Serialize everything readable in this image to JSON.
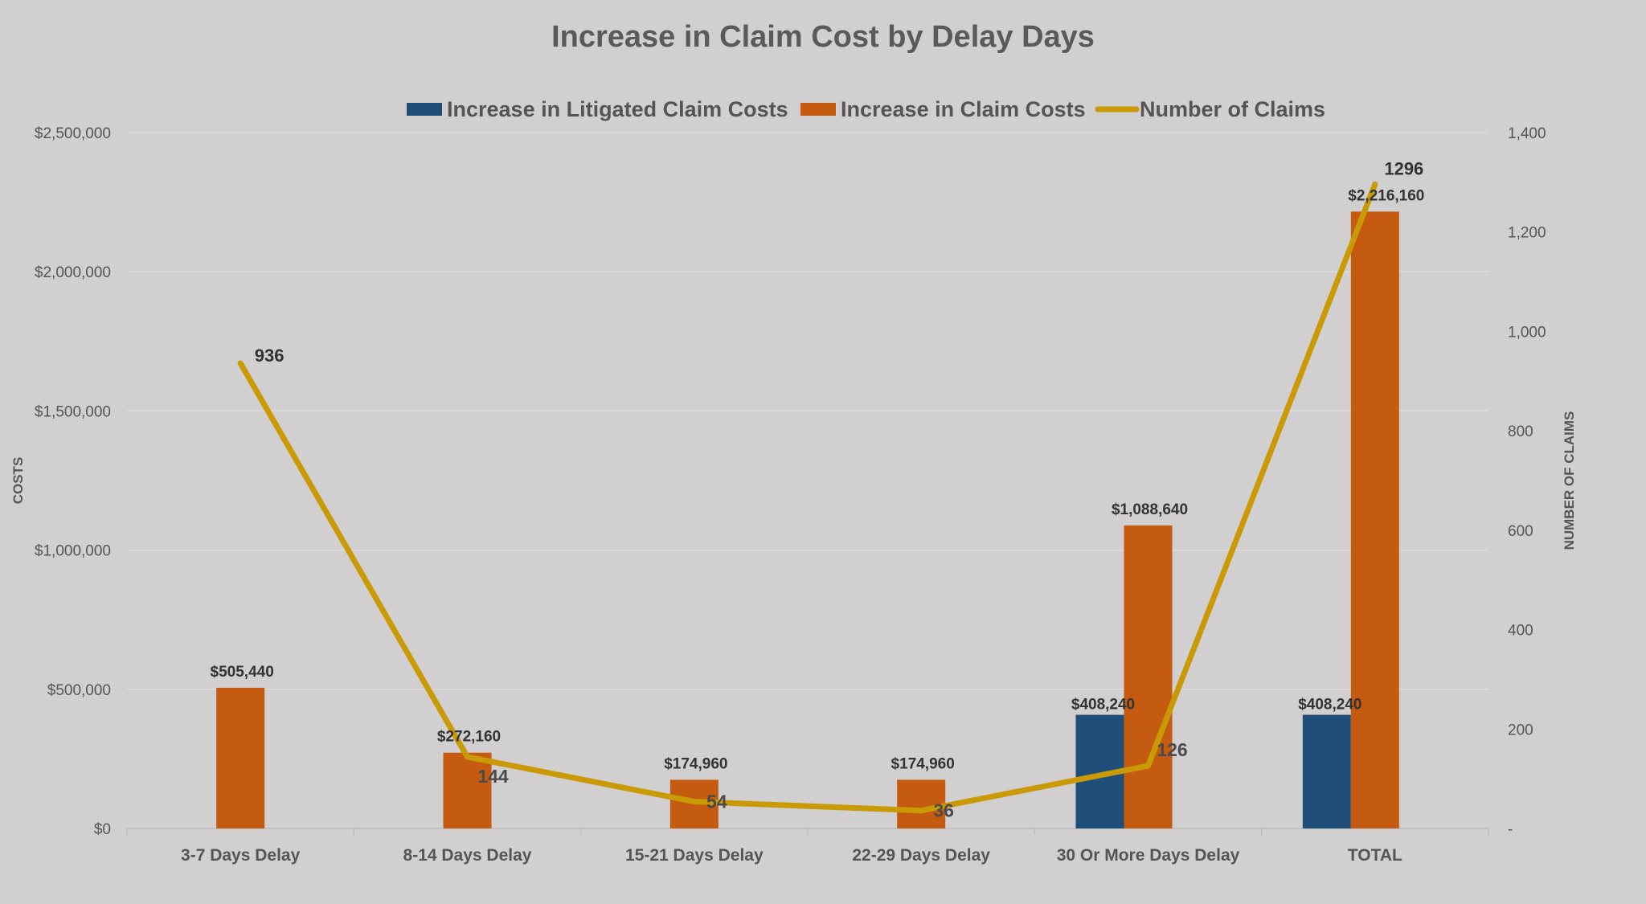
{
  "chart_data": {
    "type": "bar",
    "title": "Increase in Claim Cost by Delay Days",
    "categories": [
      "3-7 Days Delay",
      "8-14 Days Delay",
      "15-21 Days Delay",
      "22-29 Days Delay",
      "30 Or More Days Delay",
      "TOTAL"
    ],
    "series": [
      {
        "name": "Increase in Litigated Claim Costs",
        "type": "bar",
        "axis": "left",
        "color": "#1f4e79",
        "values": [
          null,
          null,
          null,
          null,
          408240,
          408240
        ],
        "labels": [
          "",
          "",
          "",
          "",
          "$408,240",
          "$408,240"
        ]
      },
      {
        "name": "Increase in Claim Costs",
        "type": "bar",
        "axis": "left",
        "color": "#c55a11",
        "values": [
          505440,
          272160,
          174960,
          174960,
          1088640,
          2216160
        ],
        "labels": [
          "$505,440",
          "$272,160",
          "$174,960",
          "$174,960",
          "$1,088,640",
          "$2,216,160"
        ]
      },
      {
        "name": "Number of Claims",
        "type": "line",
        "axis": "right",
        "color": "#c99a06",
        "values": [
          936,
          144,
          54,
          36,
          126,
          1296
        ],
        "labels": [
          "936",
          "144",
          "54",
          "36",
          "126",
          "1296"
        ]
      }
    ],
    "yaxis_left": {
      "label": "COSTS",
      "ylim": [
        0,
        2500000
      ],
      "ticks": [
        0,
        500000,
        1000000,
        1500000,
        2000000,
        2500000
      ],
      "tick_labels": [
        "$0",
        "$500,000",
        "$1,000,000",
        "$1,500,000",
        "$2,000,000",
        "$2,500,000"
      ]
    },
    "yaxis_right": {
      "label": "NUMBER OF CLAIMS",
      "ylim": [
        0,
        1400
      ],
      "ticks": [
        0,
        200,
        400,
        600,
        800,
        1000,
        1200,
        1400
      ],
      "tick_labels": [
        "-",
        "200",
        "400",
        "600",
        "800",
        "1,000",
        "1,200",
        "1,400"
      ]
    },
    "legend_position": "top-center",
    "grid": true
  }
}
